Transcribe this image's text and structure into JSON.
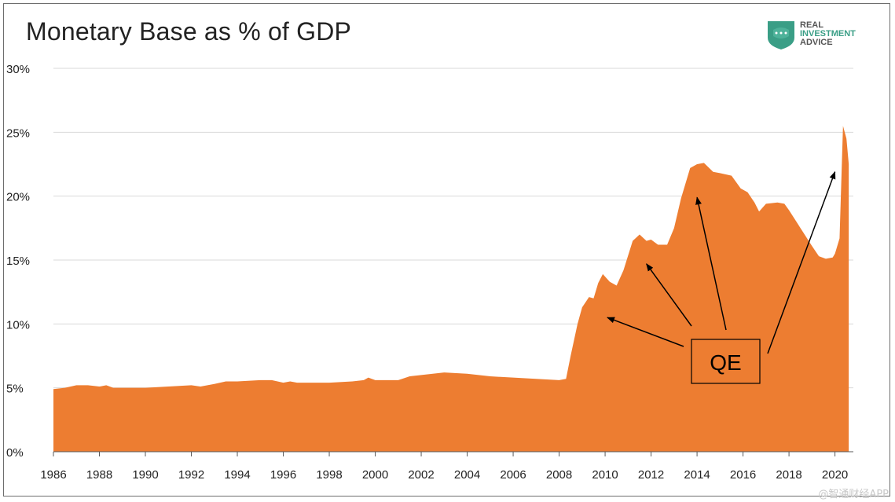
{
  "chart_data": {
    "type": "area",
    "title": "Monetary Base as % of GDP",
    "xlabel": "",
    "ylabel": "",
    "xlim": [
      1986,
      2020.8
    ],
    "ylim": [
      0,
      30
    ],
    "grid": true,
    "fill_color": "#ed7d31",
    "yticks": [
      0,
      5,
      10,
      15,
      20,
      25,
      30
    ],
    "ytick_labels": [
      "0%",
      "5%",
      "10%",
      "15%",
      "20%",
      "25%",
      "30%"
    ],
    "xticks": [
      1986,
      1988,
      1990,
      1992,
      1994,
      1996,
      1998,
      2000,
      2002,
      2004,
      2006,
      2008,
      2010,
      2012,
      2014,
      2016,
      2018,
      2020
    ],
    "xtick_labels": [
      "1986",
      "1988",
      "1990",
      "1992",
      "1994",
      "1996",
      "1998",
      "2000",
      "2002",
      "2004",
      "2006",
      "2008",
      "2010",
      "2012",
      "2014",
      "2016",
      "2018",
      "2020"
    ],
    "series": [
      {
        "name": "Monetary Base as % of GDP",
        "x": [
          1986,
          1986.5,
          1987,
          1987.5,
          1988,
          1988.3,
          1988.6,
          1989,
          1990,
          1991,
          1992,
          1992.4,
          1993,
          1993.5,
          1994,
          1995,
          1995.5,
          1996,
          1996.3,
          1996.6,
          1997,
          1998,
          1999,
          1999.5,
          1999.7,
          2000,
          2001,
          2001.5,
          2002,
          2003,
          2004,
          2005,
          2006,
          2007,
          2008,
          2008.3,
          2008.5,
          2008.8,
          2009,
          2009.3,
          2009.5,
          2009.7,
          2009.9,
          2010.2,
          2010.5,
          2010.8,
          2011.2,
          2011.5,
          2011.8,
          2012,
          2012.3,
          2012.7,
          2013,
          2013.3,
          2013.7,
          2014,
          2014.3,
          2014.7,
          2015,
          2015.5,
          2015.9,
          2016.2,
          2016.5,
          2016.7,
          2017,
          2017.5,
          2017.8,
          2018,
          2018.5,
          2019,
          2019.3,
          2019.6,
          2019.9,
          2020,
          2020.2,
          2020.35,
          2020.5,
          2020.6
        ],
        "values": [
          4.9,
          5.0,
          5.2,
          5.2,
          5.1,
          5.2,
          5.0,
          5.0,
          5.0,
          5.1,
          5.2,
          5.1,
          5.3,
          5.5,
          5.5,
          5.6,
          5.6,
          5.4,
          5.5,
          5.4,
          5.4,
          5.4,
          5.5,
          5.6,
          5.8,
          5.6,
          5.6,
          5.9,
          6.0,
          6.2,
          6.1,
          5.9,
          5.8,
          5.7,
          5.6,
          5.7,
          7.5,
          10.0,
          11.3,
          12.1,
          12.0,
          13.2,
          13.9,
          13.3,
          13.0,
          14.2,
          16.5,
          17.0,
          16.5,
          16.6,
          16.2,
          16.2,
          17.5,
          19.8,
          22.2,
          22.5,
          22.6,
          21.9,
          21.8,
          21.6,
          20.6,
          20.3,
          19.5,
          18.8,
          19.4,
          19.5,
          19.4,
          18.9,
          17.5,
          16.1,
          15.3,
          15.1,
          15.2,
          15.5,
          16.7,
          25.5,
          24.5,
          22.5
        ]
      }
    ],
    "annotations": [
      {
        "text": "QE",
        "type": "box",
        "arrows_to": [
          [
            2010.1,
            10.5
          ],
          [
            2011.8,
            14.7
          ],
          [
            2014.0,
            19.9
          ],
          [
            2020.0,
            21.9
          ]
        ]
      }
    ]
  },
  "logo": {
    "line1": "REAL",
    "line2": "INVESTMENT",
    "line3": "ADVICE"
  },
  "watermark": "@智通财经APP",
  "colors": {
    "grid": "#d9d9d9",
    "axis": "#595959",
    "text": "#222222"
  }
}
